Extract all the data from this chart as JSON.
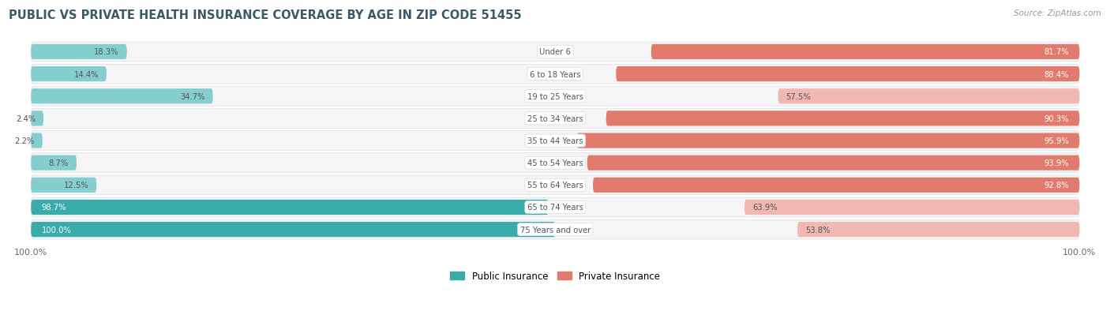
{
  "title": "PUBLIC VS PRIVATE HEALTH INSURANCE COVERAGE BY AGE IN ZIP CODE 51455",
  "source": "Source: ZipAtlas.com",
  "categories": [
    "Under 6",
    "6 to 18 Years",
    "19 to 25 Years",
    "25 to 34 Years",
    "35 to 44 Years",
    "45 to 54 Years",
    "55 to 64 Years",
    "65 to 74 Years",
    "75 Years and over"
  ],
  "public_values": [
    18.3,
    14.4,
    34.7,
    2.4,
    2.2,
    8.7,
    12.5,
    98.7,
    100.0
  ],
  "private_values": [
    81.7,
    88.4,
    57.5,
    90.3,
    95.9,
    93.9,
    92.8,
    63.9,
    53.8
  ],
  "public_color_dark": "#3aabab",
  "public_color_light": "#85cece",
  "private_color_dark": "#e07b6e",
  "private_color_light": "#f0b8b0",
  "row_bg_color": "#e8e8ec",
  "row_inner_color": "#f5f5f8",
  "text_color_dark": "#555555",
  "text_color_white": "#ffffff",
  "title_color": "#3a5a6a",
  "source_color": "#999999",
  "legend_pub_color": "#3aabab",
  "legend_priv_color": "#e07b6e",
  "max_value": 100.0,
  "pub_dark_threshold": 50.0,
  "priv_dark_threshold": 70.0,
  "figsize": [
    14.06,
    4.14
  ],
  "dpi": 100
}
